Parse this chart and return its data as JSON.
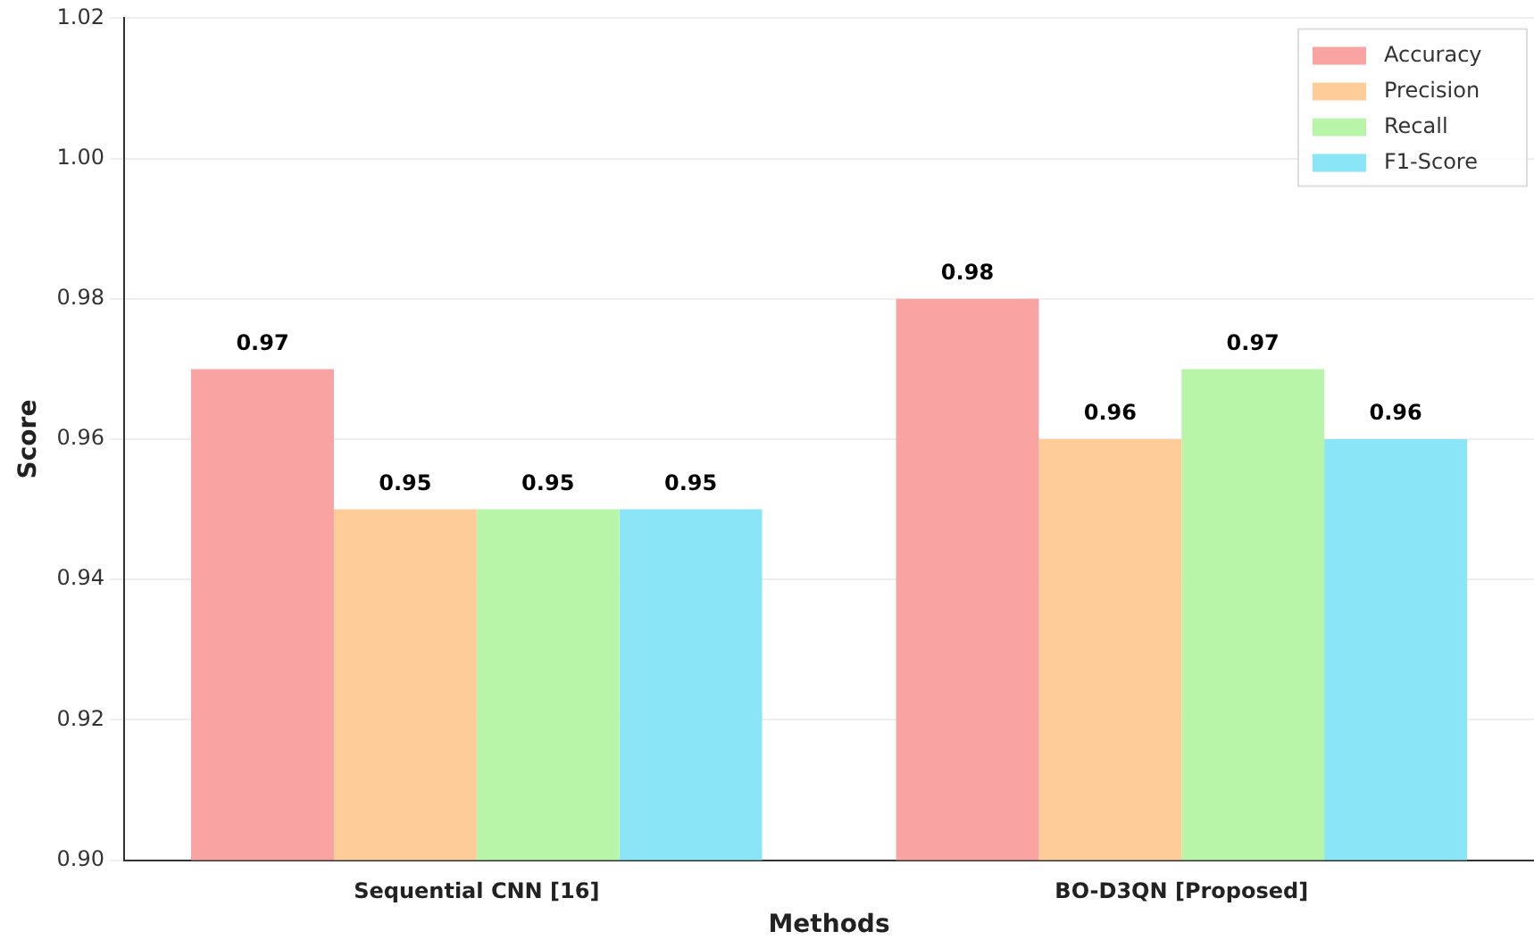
{
  "chart_data": {
    "type": "bar",
    "xlabel": "Methods",
    "ylabel": "Score",
    "categories": [
      "Sequential CNN [16]",
      "BO-D3QN [Proposed]"
    ],
    "series": [
      {
        "name": "Accuracy",
        "color": "#f9a3a3",
        "values": [
          0.97,
          0.98
        ]
      },
      {
        "name": "Precision",
        "color": "#fdcc98",
        "values": [
          0.95,
          0.96
        ]
      },
      {
        "name": "Recall",
        "color": "#b8f5a8",
        "values": [
          0.95,
          0.97
        ]
      },
      {
        "name": "F1-Score",
        "color": "#8ae6f7",
        "values": [
          0.95,
          0.96
        ]
      }
    ],
    "ylim": [
      0.9,
      1.02
    ],
    "yticks": [
      {
        "value": 0.9,
        "label": "0.90"
      },
      0.92,
      0.94,
      0.96,
      0.98,
      {
        "value": 1,
        "label": "1.00"
      },
      1.02
    ],
    "grid": "y",
    "legend": "top right",
    "data_labels": true
  }
}
